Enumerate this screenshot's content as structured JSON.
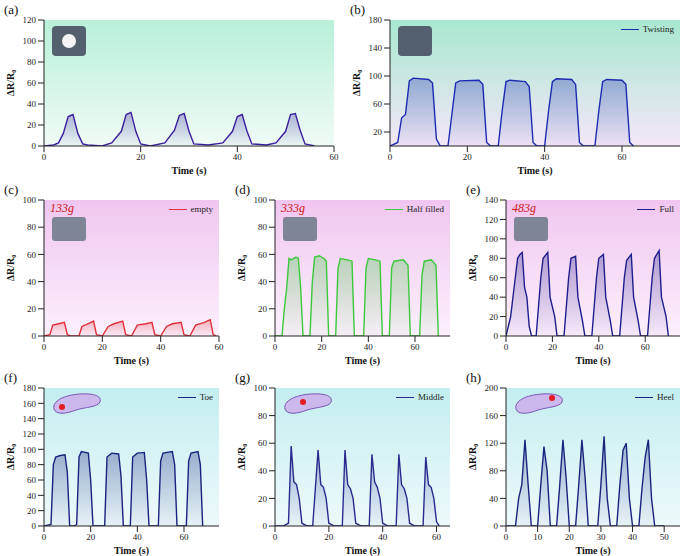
{
  "chart_data": [
    {
      "type": "area",
      "title": "(a)",
      "x_label": "Time (s)",
      "y_label": "ΔR/R₀",
      "color": "#3b1f9e",
      "x": [
        0,
        2,
        3,
        4,
        5,
        6,
        7,
        8,
        9,
        12,
        14,
        16,
        17,
        18,
        19,
        20,
        22,
        25,
        27,
        28,
        29,
        30,
        31,
        34,
        37,
        39,
        40,
        41,
        42,
        43,
        46,
        48,
        50,
        51,
        52,
        53,
        54,
        56
      ],
      "values": [
        0,
        1,
        3,
        12,
        28,
        30,
        12,
        2,
        1,
        0,
        3,
        14,
        30,
        32,
        14,
        2,
        0,
        3,
        15,
        29,
        31,
        14,
        2,
        1,
        3,
        14,
        28,
        30,
        14,
        2,
        1,
        3,
        14,
        30,
        31,
        15,
        2,
        0
      ],
      "xlim": [
        0,
        60
      ],
      "xticks": [
        0,
        20,
        40,
        60
      ],
      "ylim": [
        0,
        120
      ],
      "yticks": [
        0,
        20,
        40,
        60,
        80,
        100,
        120
      ]
    },
    {
      "type": "area",
      "title": "(b)",
      "x_label": "Time (s)",
      "y_label": "ΔR/R₀",
      "legend": "upper right",
      "x": [
        0,
        2,
        3,
        4,
        5,
        6,
        10,
        11,
        12,
        13,
        15,
        16,
        17,
        18,
        23,
        24,
        25,
        26,
        28,
        29,
        30,
        31,
        35,
        36,
        37,
        38,
        40,
        41,
        42,
        43,
        47,
        48,
        49,
        50,
        53,
        54,
        55,
        56,
        60,
        61,
        62,
        63
      ],
      "series": [
        {
          "name": "Twisting",
          "color": "#1c2bb0",
          "values": [
            0,
            5,
            40,
            45,
            93,
            97,
            95,
            90,
            10,
            0,
            0,
            45,
            90,
            93,
            94,
            88,
            5,
            0,
            0,
            50,
            92,
            94,
            92,
            85,
            5,
            0,
            0,
            50,
            92,
            96,
            95,
            88,
            5,
            0,
            0,
            50,
            92,
            95,
            94,
            88,
            5,
            0
          ]
        }
      ],
      "xlim": [
        0,
        75
      ],
      "xticks": [
        0,
        20,
        40,
        60
      ],
      "ylim": [
        0,
        180
      ],
      "yticks": [
        0,
        20,
        40,
        60,
        80,
        100,
        120,
        140,
        160,
        180
      ]
    },
    {
      "type": "area",
      "title": "(c)",
      "x_label": "Time (s)",
      "y_label": "ΔR/R₀",
      "legend": "upper right",
      "annotations": [
        "133g"
      ],
      "x": [
        0,
        2,
        3,
        5,
        7,
        8,
        9,
        12,
        13,
        15,
        17,
        18,
        20,
        22,
        24,
        27,
        28,
        30,
        32,
        35,
        37,
        38,
        40,
        42,
        44,
        47,
        48,
        50,
        52,
        55,
        57,
        58,
        59
      ],
      "series": [
        {
          "name": "empty",
          "color": "#e0303a",
          "values": [
            0,
            1,
            8,
            9,
            10,
            1,
            0,
            0,
            7,
            9,
            11,
            1,
            0,
            7,
            9,
            11,
            1,
            0,
            8,
            9,
            10,
            1,
            0,
            7,
            9,
            10,
            1,
            0,
            8,
            10,
            12,
            1,
            0
          ]
        }
      ],
      "xlim": [
        0,
        60
      ],
      "xticks": [
        0,
        20,
        40,
        60
      ],
      "ylim": [
        0,
        100
      ],
      "yticks": [
        0,
        20,
        40,
        60,
        80,
        100
      ]
    },
    {
      "type": "area",
      "title": "(d)",
      "x_label": "Time (s)",
      "y_label": "ΔR/R₀",
      "legend": "upper right",
      "annotations": [
        "333g"
      ],
      "x": [
        0,
        3,
        4,
        5,
        6,
        7,
        9,
        10,
        11,
        12,
        15,
        16,
        17,
        19,
        21,
        22,
        23,
        26,
        27,
        28,
        31,
        33,
        34,
        38,
        39,
        40,
        43,
        45,
        46,
        49,
        50,
        51,
        55,
        57,
        58,
        62,
        63,
        64,
        67,
        69,
        70
      ],
      "series": [
        {
          "name": "Half filled",
          "color": "#3dc83d",
          "values": [
            0,
            0,
            20,
            35,
            57,
            56,
            58,
            57,
            35,
            0,
            0,
            40,
            58,
            59,
            57,
            55,
            0,
            0,
            50,
            57,
            56,
            55,
            0,
            0,
            50,
            57,
            56,
            55,
            0,
            0,
            50,
            55,
            56,
            52,
            0,
            0,
            45,
            55,
            56,
            52,
            0
          ]
        }
      ],
      "xlim": [
        0,
        75
      ],
      "xticks": [
        0,
        20,
        40,
        60
      ],
      "ylim": [
        0,
        100
      ],
      "yticks": [
        0,
        20,
        40,
        60,
        80,
        100
      ]
    },
    {
      "type": "area",
      "title": "(e)",
      "x_label": "Time (s)",
      "y_label": "ΔR/R₀",
      "legend": "upper right",
      "annotations": [
        "483g"
      ],
      "x": [
        0,
        2,
        4,
        5,
        6,
        7,
        8,
        9,
        10,
        11,
        13,
        15,
        16,
        18,
        19,
        21,
        22,
        25,
        27,
        28,
        30,
        31,
        33,
        34,
        37,
        39,
        40,
        42,
        43,
        45,
        46,
        49,
        51,
        52,
        54,
        55,
        57,
        58,
        61,
        63,
        64,
        66,
        67,
        69,
        70
      ],
      "series": [
        {
          "name": "Full",
          "color": "#1e1e8c",
          "values": [
            0,
            20,
            60,
            80,
            84,
            86,
            50,
            40,
            10,
            0,
            0,
            60,
            80,
            86,
            40,
            20,
            0,
            0,
            60,
            80,
            82,
            40,
            15,
            0,
            0,
            60,
            80,
            84,
            40,
            15,
            0,
            0,
            60,
            78,
            84,
            40,
            15,
            0,
            0,
            60,
            80,
            88,
            40,
            20,
            0
          ]
        }
      ],
      "xlim": [
        0,
        75
      ],
      "xticks": [
        0,
        20,
        40,
        60
      ],
      "ylim": [
        0,
        140
      ],
      "yticks": [
        0,
        20,
        40,
        60,
        80,
        100,
        120,
        140
      ]
    },
    {
      "type": "area",
      "title": "(f)",
      "x_label": "Time (s)",
      "y_label": "ΔR/R₀",
      "legend": "upper right",
      "x": [
        0,
        3,
        4,
        5,
        7,
        9,
        10,
        11,
        13,
        14,
        15,
        16,
        19,
        20,
        21,
        26,
        27,
        29,
        32,
        33,
        34,
        37,
        38,
        40,
        43,
        44,
        45,
        49,
        50,
        51,
        55,
        56,
        57,
        61,
        62,
        63,
        66,
        67,
        68
      ],
      "series": [
        {
          "name": "Toe",
          "color": "#1a237e",
          "values": [
            0,
            2,
            80,
            90,
            92,
            93,
            70,
            0,
            0,
            2,
            90,
            97,
            95,
            60,
            0,
            0,
            90,
            95,
            94,
            65,
            0,
            0,
            90,
            95,
            96,
            60,
            0,
            0,
            85,
            95,
            97,
            80,
            0,
            0,
            85,
            95,
            97,
            80,
            0
          ]
        }
      ],
      "xlim": [
        0,
        75
      ],
      "xticks": [
        0,
        20,
        40,
        60
      ],
      "ylim": [
        0,
        180
      ],
      "yticks": [
        0,
        20,
        40,
        60,
        80,
        100,
        120,
        140,
        160,
        180
      ]
    },
    {
      "type": "area",
      "title": "(g)",
      "x_label": "Time (s)",
      "y_label": "ΔR/R₀",
      "legend": "upper right",
      "x": [
        0,
        3,
        5,
        6,
        7,
        8,
        9,
        10,
        12,
        14,
        16,
        17,
        18,
        19,
        20,
        22,
        25,
        26,
        27,
        28,
        29,
        30,
        32,
        35,
        36,
        37,
        38,
        39,
        40,
        42,
        45,
        46,
        47,
        48,
        49,
        50,
        52,
        55,
        56,
        57,
        58,
        59,
        60,
        61
      ],
      "series": [
        {
          "name": "Middle",
          "color": "#2a2a8e",
          "values": [
            0,
            0,
            2,
            58,
            32,
            30,
            20,
            2,
            0,
            0,
            55,
            30,
            28,
            20,
            2,
            0,
            0,
            55,
            30,
            27,
            20,
            2,
            0,
            0,
            52,
            32,
            28,
            20,
            2,
            0,
            0,
            52,
            30,
            27,
            20,
            2,
            0,
            0,
            50,
            30,
            28,
            20,
            3,
            0
          ]
        }
      ],
      "xlim": [
        0,
        65
      ],
      "xticks": [
        0,
        20,
        40,
        60
      ],
      "ylim": [
        0,
        100
      ],
      "yticks": [
        0,
        20,
        40,
        60,
        80,
        100
      ]
    },
    {
      "type": "area",
      "title": "(h)",
      "x_label": "Time (s)",
      "y_label": "ΔR/R₀",
      "legend": "upper right",
      "x": [
        0,
        3,
        4,
        5,
        6,
        7,
        8,
        10,
        11,
        12,
        13,
        14,
        16,
        17,
        18,
        19,
        20,
        22,
        23,
        24,
        25,
        26,
        29,
        30,
        31,
        32,
        33,
        35,
        36,
        37,
        38,
        39,
        40,
        42,
        43,
        44,
        45,
        46,
        47,
        50
      ],
      "series": [
        {
          "name": "Heel",
          "color": "#1a237e",
          "values": [
            0,
            0,
            40,
            60,
            125,
            60,
            0,
            0,
            60,
            115,
            80,
            0,
            0,
            60,
            125,
            70,
            0,
            0,
            60,
            125,
            70,
            0,
            0,
            60,
            130,
            40,
            0,
            0,
            60,
            110,
            120,
            40,
            0,
            0,
            55,
            100,
            125,
            40,
            0,
            0
          ]
        }
      ],
      "xlim": [
        0,
        55
      ],
      "xticks": [
        0,
        10,
        20,
        30,
        40,
        50
      ],
      "ylim": [
        0,
        200
      ],
      "yticks": [
        0,
        20,
        40,
        60,
        80,
        100,
        120,
        140,
        160,
        180,
        200
      ]
    }
  ]
}
